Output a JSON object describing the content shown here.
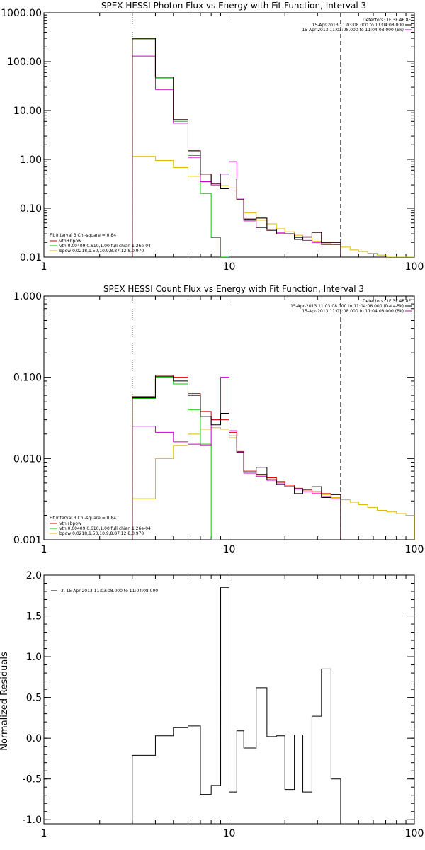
{
  "colors": {
    "data": "#000000",
    "total": "#dd0000",
    "vth": "#00cc00",
    "bpow": "#ddbb00",
    "bk": "#cc00cc"
  },
  "chart_data": [
    {
      "type": "line",
      "title": "SPEX HESSI Photon Flux vs Energy with Fit Function, Interval 3",
      "xlabel": "",
      "ylabel": "",
      "xscale": "log",
      "yscale": "log",
      "xlim": [
        1,
        100
      ],
      "ylim": [
        0.01,
        1000
      ],
      "x_ticks": [
        1,
        10,
        100
      ],
      "x_tick_labels": [
        "1",
        "10",
        "100"
      ],
      "y_ticks": [
        0.01,
        0.1,
        1,
        10,
        100,
        1000
      ],
      "y_tick_labels": [
        "0.01",
        "0.10",
        "1.00",
        "10.00",
        "100.00",
        "1000.00"
      ],
      "vlines": [
        {
          "x": 3,
          "style": "dotted"
        },
        {
          "x": 40,
          "style": "dashed"
        }
      ],
      "bin_edges": [
        3,
        4,
        5,
        6,
        7,
        8,
        9,
        10,
        11,
        12,
        14,
        16,
        18,
        20,
        22.5,
        25,
        28,
        31.5,
        35.5,
        40,
        45,
        50,
        56,
        63,
        71,
        80,
        90,
        100
      ],
      "legend_top_right": [
        "Detectors: 1F 3F 4F 8F",
        "15-Apr-2013 11:03:08.000 to 11:04:08.000",
        "15-Apr-2013 11:03:08.000 to 11:04:08.000 (Bk)"
      ],
      "legend_bottom_left": [
        "Fit Interval  3    Chi-square = 0.84",
        "vth+bpow",
        "vth 0.00409,0.610,1.00   full chian 1.26e-04",
        "bpow 0.0218,1.50,10.9,8.87,12.8,0.970"
      ],
      "series": [
        {
          "role": "data",
          "values": [
            300,
            48,
            6.5,
            1.5,
            0.5,
            0.32,
            0.25,
            0.4,
            0.15,
            0.06,
            0.063,
            0.037,
            0.03,
            0.03,
            0.023,
            0.026,
            0.032,
            0.02,
            0.02
          ]
        },
        {
          "role": "total",
          "values": [
            300,
            48,
            6.5,
            1.5,
            0.5,
            0.32,
            0.25,
            0.4,
            0.15,
            0.06,
            0.063,
            0.037,
            0.03,
            0.03,
            0.023,
            0.026,
            0.032,
            0.02,
            0.02
          ]
        },
        {
          "role": "vth",
          "values": [
            290,
            45,
            6.0,
            1.2,
            0.2,
            0.025,
            0.004
          ]
        },
        {
          "role": "bpow",
          "values": [
            1.15,
            0.95,
            0.68,
            0.45,
            0.35,
            0.3,
            0.29,
            0.26,
            0.15,
            0.08,
            0.057,
            0.048,
            0.038,
            0.033,
            0.028,
            0.025,
            0.021,
            0.019,
            0.018,
            0.016,
            0.014,
            0.013,
            0.012,
            0.011,
            0.01,
            0.009,
            0.0085
          ]
        },
        {
          "role": "bk",
          "values": [
            130,
            27,
            5.5,
            1.1,
            0.35,
            0.3,
            0.5,
            0.9,
            0.16,
            0.055,
            0.04,
            0.035,
            0.032,
            0.03,
            0.025,
            0.022,
            0.02,
            0.018,
            0.018
          ]
        }
      ]
    },
    {
      "type": "line",
      "title": "SPEX HESSI Count Flux vs Energy with Fit Function, Interval 3",
      "xlabel": "",
      "ylabel": "",
      "xscale": "log",
      "yscale": "log",
      "xlim": [
        1,
        100
      ],
      "ylim": [
        0.001,
        1
      ],
      "x_ticks": [
        1,
        10,
        100
      ],
      "x_tick_labels": [
        "1",
        "10",
        "100"
      ],
      "y_ticks": [
        0.001,
        0.01,
        0.1,
        1
      ],
      "y_tick_labels": [
        "0.001",
        "0.010",
        "0.100",
        "1.000"
      ],
      "vlines": [
        {
          "x": 3,
          "style": "dotted"
        },
        {
          "x": 40,
          "style": "dashed"
        }
      ],
      "bin_edges": [
        3,
        4,
        5,
        6,
        7,
        8,
        9,
        10,
        11,
        12,
        14,
        16,
        18,
        20,
        22.5,
        25,
        28,
        31.5,
        35.5,
        40,
        45,
        50,
        56,
        63,
        71,
        80,
        90,
        100
      ],
      "legend_top_right": [
        "Detectors: 1F 3F 4F 8F",
        "15-Apr-2013 11:03:08.000 to 11:04:08.000 (Data-Bk)",
        "15-Apr-2013 11:03:08.000 to 11:04:08.000 (Bk)"
      ],
      "legend_bottom_left": [
        "Fit Interval  3    Chi-square = 0.84",
        "vth+bpow",
        "vth 0.00409,0.610,1.00   full chian 1.26e-04",
        "bpow 0.0218,1.50,10.9,8.87,12.8,0.970"
      ],
      "series": [
        {
          "role": "data",
          "values": [
            0.056,
            0.103,
            0.09,
            0.06,
            0.033,
            0.026,
            0.036,
            0.019,
            0.0118,
            0.0068,
            0.0078,
            0.0055,
            0.0048,
            0.0045,
            0.0037,
            0.0042,
            0.0045,
            0.0033,
            0.0036
          ]
        },
        {
          "role": "total",
          "values": [
            0.058,
            0.106,
            0.1,
            0.063,
            0.038,
            0.03,
            0.03,
            0.021,
            0.0122,
            0.007,
            0.0064,
            0.0058,
            0.0052,
            0.0047,
            0.0043,
            0.0041,
            0.0039,
            0.0037,
            0.0036
          ]
        },
        {
          "role": "vth",
          "values": [
            0.055,
            0.1,
            0.083,
            0.04,
            0.015,
            0.0009
          ]
        },
        {
          "role": "bpow",
          "values": [
            0.0032,
            0.01,
            0.0145,
            0.02,
            0.023,
            0.024,
            0.023,
            0.018,
            0.012,
            0.0068,
            0.0062,
            0.0058,
            0.0052,
            0.0047,
            0.0043,
            0.0041,
            0.0039,
            0.0036,
            0.0033,
            0.0031,
            0.0029,
            0.0027,
            0.0025,
            0.0023,
            0.0022,
            0.0021,
            0.002
          ]
        },
        {
          "role": "bk",
          "values": [
            0.025,
            0.021,
            0.016,
            0.015,
            0.0145,
            0.03,
            0.1,
            0.022,
            0.012,
            0.0066,
            0.006,
            0.0054,
            0.005,
            0.0045,
            0.0042,
            0.0039,
            0.0037,
            0.0034,
            0.0032
          ]
        }
      ]
    },
    {
      "type": "line",
      "title": "",
      "xlabel": "",
      "ylabel": "Normalized Residuals",
      "xscale": "log",
      "yscale": "linear",
      "xlim": [
        1,
        100
      ],
      "ylim": [
        -1.05,
        2.0
      ],
      "x_ticks": [
        1,
        10,
        100
      ],
      "x_tick_labels": [
        "1",
        "10",
        "100"
      ],
      "y_ticks": [
        -1,
        -0.5,
        0,
        0.5,
        1,
        1.5,
        2
      ],
      "y_tick_labels": [
        "-1.0",
        "-0.5",
        "0.0",
        "0.5",
        "1.0",
        "1.5",
        "2.0"
      ],
      "bin_edges": [
        3,
        4,
        5,
        6,
        7,
        8,
        9,
        10,
        11,
        12,
        14,
        16,
        18,
        20,
        22.5,
        25,
        28,
        31.5,
        35.5,
        40
      ],
      "legend_top_left": [
        "3, 15-Apr-2013 11:03:08.000 to 11:04:08.000"
      ],
      "series": [
        {
          "role": "data",
          "values": [
            -0.21,
            0.03,
            0.13,
            0.15,
            -0.69,
            -0.58,
            1.85,
            -0.66,
            0.09,
            -0.12,
            0.62,
            0.02,
            0.03,
            -0.63,
            0.04,
            -0.66,
            0.27,
            0.85,
            -0.5
          ]
        }
      ]
    }
  ]
}
